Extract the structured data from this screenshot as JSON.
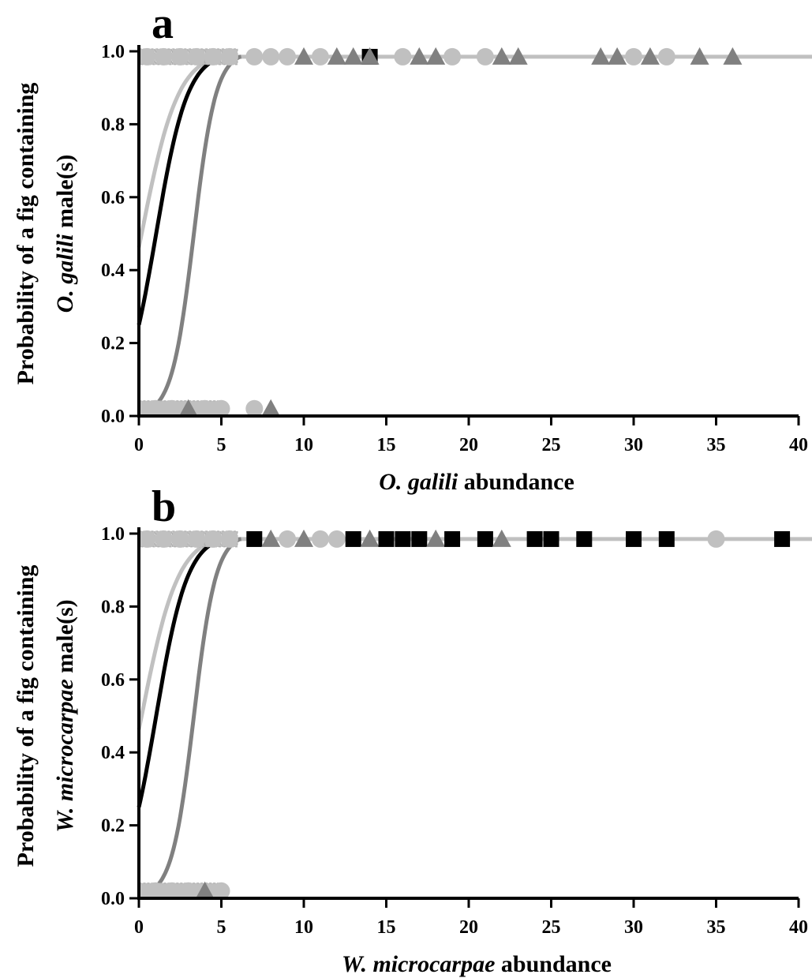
{
  "colors": {
    "black": "#000000",
    "dark_gray": "#808080",
    "light_gray": "#c0c0c0"
  },
  "chart_data": [
    {
      "panel_label": "a",
      "type": "scatter",
      "xlabel": [
        "O. galili",
        " abundance"
      ],
      "ylabel_line1": "Probability of a fig containing",
      "ylabel_line2": [
        "O. galili",
        " male(s)"
      ],
      "xlim": [
        0,
        40
      ],
      "ylim": [
        0,
        1
      ],
      "xticks": [
        "0",
        "5",
        "10",
        "15",
        "20",
        "25",
        "30",
        "35",
        "40"
      ],
      "yticks": [
        "0.0",
        "0.2",
        "0.4",
        "0.6",
        "0.8",
        "1.0"
      ],
      "curves": [
        {
          "color": "light_gray",
          "a": -0.15,
          "b": 0.9
        },
        {
          "color": "black",
          "a": -1.1,
          "b": 1.05
        },
        {
          "color": "dark_gray",
          "a": -5.0,
          "b": 1.5
        }
      ],
      "points_top": [
        {
          "x": 0.5,
          "shape": "square",
          "color": "light_gray"
        },
        {
          "x": 1.5,
          "shape": "square",
          "color": "light_gray"
        },
        {
          "x": 2.5,
          "shape": "square",
          "color": "light_gray"
        },
        {
          "x": 3.5,
          "shape": "square",
          "color": "light_gray"
        },
        {
          "x": 4.5,
          "shape": "square",
          "color": "light_gray"
        },
        {
          "x": 5.5,
          "shape": "square",
          "color": "light_gray"
        },
        {
          "x": 0.5,
          "shape": "circle",
          "color": "light_gray"
        },
        {
          "x": 1.5,
          "shape": "circle",
          "color": "light_gray"
        },
        {
          "x": 2.5,
          "shape": "circle",
          "color": "light_gray"
        },
        {
          "x": 3.5,
          "shape": "circle",
          "color": "light_gray"
        },
        {
          "x": 4.5,
          "shape": "circle",
          "color": "light_gray"
        },
        {
          "x": 5.5,
          "shape": "circle",
          "color": "light_gray"
        },
        {
          "x": 7,
          "shape": "circle",
          "color": "light_gray"
        },
        {
          "x": 8,
          "shape": "circle",
          "color": "light_gray"
        },
        {
          "x": 9,
          "shape": "circle",
          "color": "light_gray"
        },
        {
          "x": 10,
          "shape": "triangle",
          "color": "dark_gray"
        },
        {
          "x": 11,
          "shape": "circle",
          "color": "light_gray"
        },
        {
          "x": 12,
          "shape": "triangle",
          "color": "dark_gray"
        },
        {
          "x": 13,
          "shape": "triangle",
          "color": "dark_gray"
        },
        {
          "x": 14,
          "shape": "square",
          "color": "black"
        },
        {
          "x": 14,
          "shape": "triangle",
          "color": "dark_gray"
        },
        {
          "x": 16,
          "shape": "circle",
          "color": "light_gray"
        },
        {
          "x": 17,
          "shape": "triangle",
          "color": "dark_gray"
        },
        {
          "x": 18,
          "shape": "triangle",
          "color": "dark_gray"
        },
        {
          "x": 19,
          "shape": "circle",
          "color": "light_gray"
        },
        {
          "x": 21,
          "shape": "circle",
          "color": "light_gray"
        },
        {
          "x": 22,
          "shape": "triangle",
          "color": "dark_gray"
        },
        {
          "x": 23,
          "shape": "triangle",
          "color": "dark_gray"
        },
        {
          "x": 28,
          "shape": "triangle",
          "color": "dark_gray"
        },
        {
          "x": 29,
          "shape": "triangle",
          "color": "dark_gray"
        },
        {
          "x": 30,
          "shape": "circle",
          "color": "light_gray"
        },
        {
          "x": 31,
          "shape": "triangle",
          "color": "dark_gray"
        },
        {
          "x": 32,
          "shape": "circle",
          "color": "light_gray"
        },
        {
          "x": 34,
          "shape": "triangle",
          "color": "dark_gray"
        },
        {
          "x": 36,
          "shape": "triangle",
          "color": "dark_gray"
        }
      ],
      "points_bottom": [
        {
          "x": 0.5,
          "shape": "square",
          "color": "light_gray"
        },
        {
          "x": 1.5,
          "shape": "square",
          "color": "light_gray"
        },
        {
          "x": 2.5,
          "shape": "square",
          "color": "light_gray"
        },
        {
          "x": 3.5,
          "shape": "square",
          "color": "light_gray"
        },
        {
          "x": 4.5,
          "shape": "square",
          "color": "light_gray"
        },
        {
          "x": 1,
          "shape": "circle",
          "color": "light_gray"
        },
        {
          "x": 2,
          "shape": "circle",
          "color": "light_gray"
        },
        {
          "x": 3,
          "shape": "triangle",
          "color": "dark_gray"
        },
        {
          "x": 4,
          "shape": "circle",
          "color": "light_gray"
        },
        {
          "x": 5,
          "shape": "circle",
          "color": "light_gray"
        },
        {
          "x": 7,
          "shape": "circle",
          "color": "light_gray"
        },
        {
          "x": 8,
          "shape": "triangle",
          "color": "dark_gray"
        }
      ]
    },
    {
      "panel_label": "b",
      "type": "scatter",
      "xlabel": [
        "W. microcarpae",
        " abundance"
      ],
      "ylabel_line1": "Probability of a fig containing",
      "ylabel_line2": [
        "W. microcarpae",
        " male(s)"
      ],
      "xlim": [
        0,
        40
      ],
      "ylim": [
        0,
        1
      ],
      "xticks": [
        "0",
        "5",
        "10",
        "15",
        "20",
        "25",
        "30",
        "35",
        "40"
      ],
      "yticks": [
        "0.0",
        "0.2",
        "0.4",
        "0.6",
        "0.8",
        "1.0"
      ],
      "curves": [
        {
          "color": "light_gray",
          "a": -0.15,
          "b": 0.9
        },
        {
          "color": "black",
          "a": -1.1,
          "b": 1.05
        },
        {
          "color": "dark_gray",
          "a": -5.0,
          "b": 1.5
        }
      ],
      "points_top": [
        {
          "x": 0.5,
          "shape": "square",
          "color": "light_gray"
        },
        {
          "x": 1.5,
          "shape": "square",
          "color": "light_gray"
        },
        {
          "x": 2.5,
          "shape": "square",
          "color": "light_gray"
        },
        {
          "x": 3.5,
          "shape": "square",
          "color": "light_gray"
        },
        {
          "x": 4.5,
          "shape": "square",
          "color": "light_gray"
        },
        {
          "x": 5.5,
          "shape": "square",
          "color": "light_gray"
        },
        {
          "x": 0.5,
          "shape": "circle",
          "color": "light_gray"
        },
        {
          "x": 1.5,
          "shape": "circle",
          "color": "light_gray"
        },
        {
          "x": 2.5,
          "shape": "circle",
          "color": "light_gray"
        },
        {
          "x": 3.5,
          "shape": "circle",
          "color": "light_gray"
        },
        {
          "x": 4.5,
          "shape": "circle",
          "color": "light_gray"
        },
        {
          "x": 5.5,
          "shape": "circle",
          "color": "light_gray"
        },
        {
          "x": 7,
          "shape": "square",
          "color": "black"
        },
        {
          "x": 8,
          "shape": "triangle",
          "color": "dark_gray"
        },
        {
          "x": 9,
          "shape": "circle",
          "color": "light_gray"
        },
        {
          "x": 10,
          "shape": "triangle",
          "color": "dark_gray"
        },
        {
          "x": 11,
          "shape": "circle",
          "color": "light_gray"
        },
        {
          "x": 12,
          "shape": "circle",
          "color": "light_gray"
        },
        {
          "x": 13,
          "shape": "square",
          "color": "black"
        },
        {
          "x": 14,
          "shape": "triangle",
          "color": "dark_gray"
        },
        {
          "x": 15,
          "shape": "square",
          "color": "black"
        },
        {
          "x": 16,
          "shape": "square",
          "color": "black"
        },
        {
          "x": 17,
          "shape": "square",
          "color": "black"
        },
        {
          "x": 18,
          "shape": "triangle",
          "color": "dark_gray"
        },
        {
          "x": 19,
          "shape": "square",
          "color": "black"
        },
        {
          "x": 21,
          "shape": "square",
          "color": "black"
        },
        {
          "x": 22,
          "shape": "triangle",
          "color": "dark_gray"
        },
        {
          "x": 24,
          "shape": "square",
          "color": "black"
        },
        {
          "x": 25,
          "shape": "square",
          "color": "black"
        },
        {
          "x": 27,
          "shape": "square",
          "color": "black"
        },
        {
          "x": 30,
          "shape": "square",
          "color": "black"
        },
        {
          "x": 32,
          "shape": "square",
          "color": "black"
        },
        {
          "x": 35,
          "shape": "circle",
          "color": "light_gray"
        },
        {
          "x": 39,
          "shape": "square",
          "color": "black"
        }
      ],
      "points_bottom": [
        {
          "x": 0.5,
          "shape": "square",
          "color": "light_gray"
        },
        {
          "x": 1.5,
          "shape": "square",
          "color": "light_gray"
        },
        {
          "x": 2.5,
          "shape": "square",
          "color": "light_gray"
        },
        {
          "x": 3.5,
          "shape": "square",
          "color": "light_gray"
        },
        {
          "x": 4.5,
          "shape": "square",
          "color": "light_gray"
        },
        {
          "x": 1,
          "shape": "circle",
          "color": "light_gray"
        },
        {
          "x": 2,
          "shape": "circle",
          "color": "light_gray"
        },
        {
          "x": 3,
          "shape": "circle",
          "color": "light_gray"
        },
        {
          "x": 4,
          "shape": "triangle",
          "color": "dark_gray"
        },
        {
          "x": 5,
          "shape": "circle",
          "color": "light_gray"
        }
      ]
    }
  ]
}
